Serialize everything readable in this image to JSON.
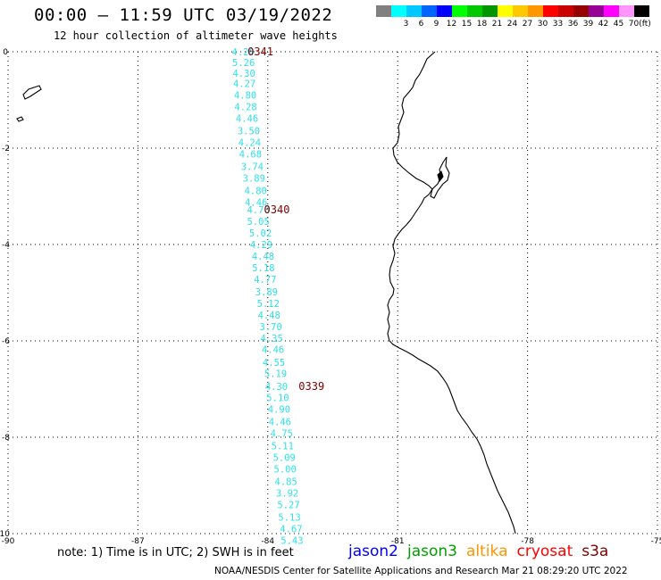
{
  "header": {
    "title": "00:00 – 11:59 UTC 03/19/2022",
    "subtitle": "12 hour collection of altimeter wave heights"
  },
  "scale": {
    "unit": "(ft)",
    "steps": [
      {
        "label": "",
        "color": "#808080"
      },
      {
        "label": "3",
        "color": "#00ffff"
      },
      {
        "label": "6",
        "color": "#00c8ff"
      },
      {
        "label": "9",
        "color": "#0064ff"
      },
      {
        "label": "12",
        "color": "#0000ff"
      },
      {
        "label": "15",
        "color": "#00ff00"
      },
      {
        "label": "18",
        "color": "#00c800"
      },
      {
        "label": "21",
        "color": "#009600"
      },
      {
        "label": "24",
        "color": "#ffff00"
      },
      {
        "label": "27",
        "color": "#ffc800"
      },
      {
        "label": "30",
        "color": "#ff9600"
      },
      {
        "label": "33",
        "color": "#ff0000"
      },
      {
        "label": "36",
        "color": "#c80000"
      },
      {
        "label": "39",
        "color": "#960000"
      },
      {
        "label": "42",
        "color": "#960096"
      },
      {
        "label": "45",
        "color": "#ff00ff"
      },
      {
        "label": "70",
        "color": "#ff96ff"
      },
      {
        "label": "",
        "color": "#000000"
      }
    ]
  },
  "axes": {
    "lon_labels": [
      "-90",
      "-87",
      "-84",
      "-81",
      "-78",
      "-75"
    ],
    "lat_labels": [
      "0",
      "-2",
      "-4",
      "-6",
      "-8",
      "-10"
    ]
  },
  "track": {
    "color": "#2fe0e8",
    "points": [
      {
        "lon": -84.57,
        "lat": 0.0,
        "swh": "4.20"
      },
      {
        "lon": -84.56,
        "lat": -0.22,
        "swh": "5.26"
      },
      {
        "lon": -84.55,
        "lat": -0.44,
        "swh": "4.30"
      },
      {
        "lon": -84.54,
        "lat": -0.66,
        "swh": "4.27"
      },
      {
        "lon": -84.52,
        "lat": -0.9,
        "swh": "4.80"
      },
      {
        "lon": -84.51,
        "lat": -1.14,
        "swh": "4.28"
      },
      {
        "lon": -84.48,
        "lat": -1.38,
        "swh": "4.46"
      },
      {
        "lon": -84.44,
        "lat": -1.64,
        "swh": "3.50"
      },
      {
        "lon": -84.42,
        "lat": -1.88,
        "swh": "4.24"
      },
      {
        "lon": -84.4,
        "lat": -2.12,
        "swh": "4.68"
      },
      {
        "lon": -84.36,
        "lat": -2.38,
        "swh": "3.74"
      },
      {
        "lon": -84.32,
        "lat": -2.62,
        "swh": "3.89"
      },
      {
        "lon": -84.28,
        "lat": -2.88,
        "swh": "4.80"
      },
      {
        "lon": -84.27,
        "lat": -3.12,
        "swh": "4.46"
      },
      {
        "lon": -84.22,
        "lat": -3.28,
        "swh": "4.70"
      },
      {
        "lon": -84.22,
        "lat": -3.52,
        "swh": "5.05"
      },
      {
        "lon": -84.17,
        "lat": -3.76,
        "swh": "5.02"
      },
      {
        "lon": -84.15,
        "lat": -4.0,
        "swh": "4.29"
      },
      {
        "lon": -84.11,
        "lat": -4.24,
        "swh": "4.48"
      },
      {
        "lon": -84.1,
        "lat": -4.48,
        "swh": "5.18"
      },
      {
        "lon": -84.06,
        "lat": -4.72,
        "swh": "4.77"
      },
      {
        "lon": -84.03,
        "lat": -4.98,
        "swh": "3.89"
      },
      {
        "lon": -83.99,
        "lat": -5.22,
        "swh": "5.12"
      },
      {
        "lon": -83.97,
        "lat": -5.46,
        "swh": "4.48"
      },
      {
        "lon": -83.93,
        "lat": -5.7,
        "swh": "3.70"
      },
      {
        "lon": -83.91,
        "lat": -5.94,
        "swh": "4.35"
      },
      {
        "lon": -83.88,
        "lat": -6.18,
        "swh": "4.46"
      },
      {
        "lon": -83.86,
        "lat": -6.44,
        "swh": "4.55"
      },
      {
        "lon": -83.82,
        "lat": -6.68,
        "swh": "5.19"
      },
      {
        "lon": -83.8,
        "lat": -6.94,
        "swh": "4.30"
      },
      {
        "lon": -83.77,
        "lat": -7.18,
        "swh": "5.10"
      },
      {
        "lon": -83.74,
        "lat": -7.42,
        "swh": "4.90"
      },
      {
        "lon": -83.72,
        "lat": -7.68,
        "swh": "4.46"
      },
      {
        "lon": -83.68,
        "lat": -7.92,
        "swh": "4.75"
      },
      {
        "lon": -83.66,
        "lat": -8.18,
        "swh": "5.11"
      },
      {
        "lon": -83.62,
        "lat": -8.42,
        "swh": "5.09"
      },
      {
        "lon": -83.6,
        "lat": -8.66,
        "swh": "5.00"
      },
      {
        "lon": -83.58,
        "lat": -8.92,
        "swh": "4.85"
      },
      {
        "lon": -83.55,
        "lat": -9.16,
        "swh": "3.92"
      },
      {
        "lon": -83.52,
        "lat": -9.4,
        "swh": "5.27"
      },
      {
        "lon": -83.5,
        "lat": -9.66,
        "swh": "5.13"
      },
      {
        "lon": -83.46,
        "lat": -9.9,
        "swh": "4.67"
      },
      {
        "lon": -83.44,
        "lat": -10.14,
        "swh": "5.43"
      }
    ],
    "times": [
      {
        "label": "0341",
        "lon": -84.17,
        "lat": 0.0
      },
      {
        "label": "0340",
        "lon": -83.79,
        "lat": -3.28
      },
      {
        "label": "0339",
        "lon": -82.99,
        "lat": -6.94
      }
    ]
  },
  "footer": {
    "note": "note: 1) Time is in UTC; 2) SWH is in feet",
    "legend": [
      {
        "name": "jason2",
        "color": "#0000ff"
      },
      {
        "name": "jason3",
        "color": "#00a000"
      },
      {
        "name": "altika",
        "color": "#ff9600"
      },
      {
        "name": "cryosat",
        "color": "#ff0000"
      },
      {
        "name": "s3a",
        "color": "#800000"
      }
    ],
    "credit": "NOAA/NESDIS Center for Satellite Applications and Research    Mar 21 08:29:20 UTC 2022"
  }
}
